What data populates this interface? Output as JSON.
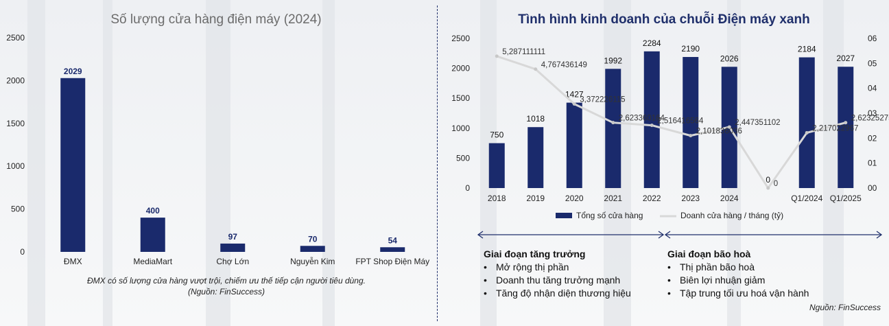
{
  "colors": {
    "bar": "#1a2a6c",
    "line": "#d8d8d8",
    "title_right": "#1f2f6b",
    "arrow": "#1f2f6b"
  },
  "left": {
    "title": "Số lượng cửa hàng điện máy (2024)",
    "note_line1": "ĐMX có số lượng cửa hàng vượt trội, chiếm ưu thế tiếp cận người tiêu dùng.",
    "note_line2": "(Nguồn: FinSuccess)"
  },
  "right": {
    "title": "Tình hình kinh doanh của chuỗi Điện máy xanh",
    "stage_growth": {
      "title": "Giai đoạn tăng trưởng",
      "items": [
        "Mở rộng thị phần",
        "Doanh thu tăng trưởng mạnh",
        "Tăng độ nhận diện thương hiệu"
      ]
    },
    "stage_saturation": {
      "title": "Giai đoạn bão hoà",
      "items": [
        "Thị phần bão hoà",
        "Biên lợi nhuận giảm",
        "Tập trung tối ưu hoá vận hành"
      ]
    },
    "source": "Nguồn: FinSuccess"
  },
  "chart_data": [
    {
      "type": "bar",
      "title": "Số lượng cửa hàng điện máy (2024)",
      "categories": [
        "ĐMX",
        "MediaMart",
        "Chợ Lớn",
        "Nguyễn Kim",
        "FPT Shop Điện Máy"
      ],
      "values": [
        2029,
        400,
        97,
        70,
        54
      ],
      "value_labels": [
        "2029",
        "400",
        "97",
        "70",
        "54"
      ],
      "ylim": [
        0,
        2500
      ],
      "yticks": [
        "0",
        "500",
        "1000",
        "1500",
        "2000",
        "2500"
      ],
      "grid": false
    },
    {
      "type": "bar",
      "title": "Tình hình kinh doanh của chuỗi Điện máy xanh",
      "categories": [
        "2018",
        "2019",
        "2020",
        "2021",
        "2022",
        "2023",
        "2024",
        "",
        "Q1/2024",
        "Q1/2025"
      ],
      "series": [
        {
          "name": "Tổng số cửa hàng",
          "type": "bar",
          "axis": "left",
          "values": [
            750,
            1018,
            1427,
            1992,
            2284,
            2190,
            2026,
            0,
            2184,
            2027
          ],
          "labels": [
            "750",
            "1018",
            "1427",
            "1992",
            "2284",
            "2190",
            "2026",
            "0",
            "2184",
            "2027"
          ]
        },
        {
          "name": "Doanh cửa hàng / tháng (tỷ)",
          "type": "line",
          "axis": "right",
          "values": [
            5.287111111,
            4.767436149,
            3.372226115,
            2.623360164,
            2.516416564,
            2.101836036,
            2.447351102,
            0,
            2.217022967,
            2.623252754
          ],
          "labels": [
            "5,287111111",
            "4,767436149",
            "3,372226115",
            "2,623360164",
            "2,516416564",
            "2,101836036",
            "2,447351102",
            "0",
            "2,217022967",
            "2,623252754"
          ]
        }
      ],
      "ylim_left": [
        0,
        2500
      ],
      "yticks_left": [
        "0",
        "500",
        "1000",
        "1500",
        "2000",
        "2500"
      ],
      "ylim_right": [
        0,
        6
      ],
      "yticks_right": [
        "00",
        "01",
        "02",
        "03",
        "04",
        "05",
        "06"
      ],
      "legend_position": "bottom",
      "grid": false
    }
  ]
}
